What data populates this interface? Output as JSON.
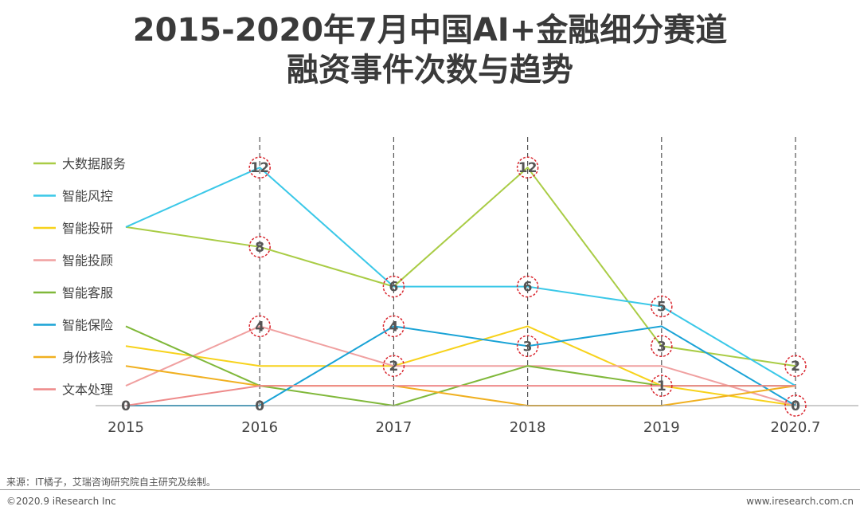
{
  "title": {
    "line1": "2015-2020年7月中国AI+金融细分赛道",
    "line2": "融资事件次数与趋势"
  },
  "chart_data": {
    "type": "line",
    "x": [
      "2015",
      "2016",
      "2017",
      "2018",
      "2019",
      "2020.7"
    ],
    "ylim": [
      0,
      13
    ],
    "grid": "vertical dashed lines at each year from 2016",
    "legend_position": "left",
    "series": [
      {
        "name": "大数据服务",
        "color": "#a9cc45",
        "values": [
          9,
          8,
          6,
          12,
          3,
          2
        ]
      },
      {
        "name": "智能风控",
        "color": "#3bc8e8",
        "values": [
          9,
          12,
          6,
          6,
          5,
          1
        ]
      },
      {
        "name": "智能投研",
        "color": "#f7d21b",
        "values": [
          3,
          2,
          2,
          4,
          1,
          0
        ]
      },
      {
        "name": "智能投顾",
        "color": "#f0a0a0",
        "values": [
          1,
          4,
          2,
          2,
          2,
          0
        ]
      },
      {
        "name": "智能客服",
        "color": "#80b83a",
        "values": [
          4,
          1,
          0,
          2,
          1,
          1
        ]
      },
      {
        "name": "智能保险",
        "color": "#1aa3d6",
        "values": [
          0,
          0,
          4,
          3,
          4,
          0
        ]
      },
      {
        "name": "身份核验",
        "color": "#f0b020",
        "values": [
          2,
          1,
          1,
          0,
          0,
          1
        ]
      },
      {
        "name": "文本处理",
        "color": "#ee8a8a",
        "values": [
          0,
          1,
          1,
          1,
          1,
          1
        ]
      }
    ],
    "data_labels": [
      {
        "x": "2015",
        "text": "0",
        "value": 0,
        "circled": false
      },
      {
        "x": "2016",
        "text": "12",
        "value": 12,
        "circled": true
      },
      {
        "x": "2016",
        "text": "8",
        "value": 8,
        "circled": true
      },
      {
        "x": "2016",
        "text": "4",
        "value": 4,
        "circled": true
      },
      {
        "x": "2016",
        "text": "0",
        "value": 0,
        "circled": false
      },
      {
        "x": "2017",
        "text": "6",
        "value": 6,
        "circled": true
      },
      {
        "x": "2017",
        "text": "4",
        "value": 4,
        "circled": true
      },
      {
        "x": "2017",
        "text": "2",
        "value": 2,
        "circled": true
      },
      {
        "x": "2018",
        "text": "12",
        "value": 12,
        "circled": true
      },
      {
        "x": "2018",
        "text": "6",
        "value": 6,
        "circled": true
      },
      {
        "x": "2018",
        "text": "3",
        "value": 3,
        "circled": true
      },
      {
        "x": "2019",
        "text": "5",
        "value": 5,
        "circled": true
      },
      {
        "x": "2019",
        "text": "3",
        "value": 3,
        "circled": true
      },
      {
        "x": "2019",
        "text": "1",
        "value": 1,
        "circled": true
      },
      {
        "x": "2020.7",
        "text": "2",
        "value": 2,
        "circled": true
      },
      {
        "x": "2020.7",
        "text": "0",
        "value": 0,
        "circled": true
      }
    ]
  },
  "footer": {
    "source": "来源：IT橘子，艾瑞咨询研究院自主研究及绘制。",
    "copyright": "©2020.9 iResearch Inc",
    "website": "www.iresearch.com.cn"
  }
}
